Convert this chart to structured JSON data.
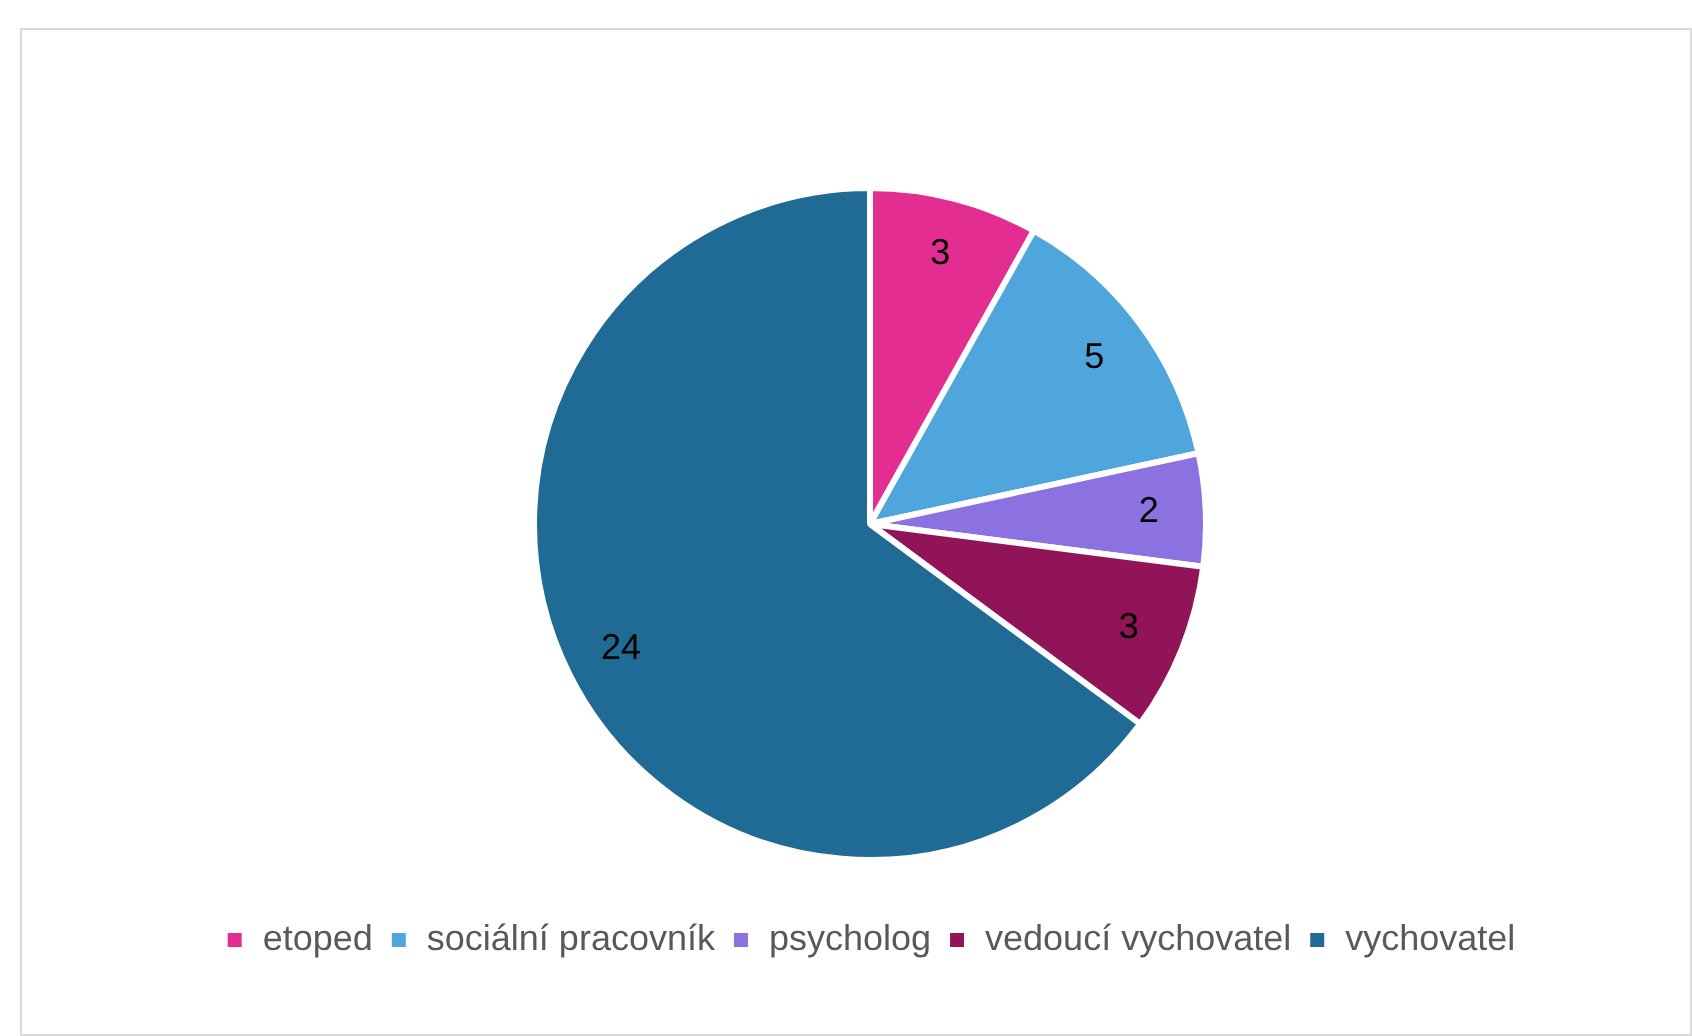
{
  "chart_data": {
    "type": "pie",
    "categories": [
      "etoped",
      "sociální pracovník",
      "psycholog",
      "vedoucí vychovatel",
      "vychovatel"
    ],
    "values": [
      3,
      5,
      2,
      3,
      24
    ],
    "colors": [
      "#e32d91",
      "#4ea6dc",
      "#8b72e0",
      "#921458",
      "#1f6b96"
    ],
    "data_labels": true,
    "legend": "bottom"
  }
}
